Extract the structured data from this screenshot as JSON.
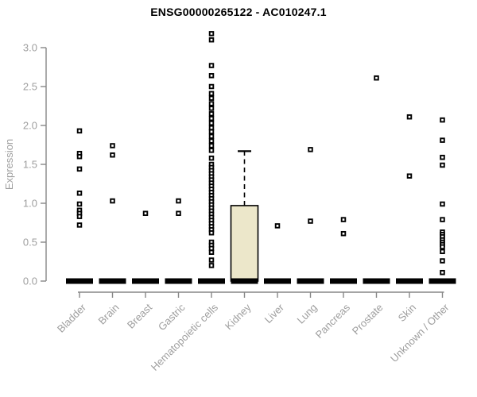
{
  "page": {
    "background": "#ffffff"
  },
  "chart_data": {
    "type": "boxplot",
    "title": "ENSG00000265122 - AC010247.1",
    "ylabel": "Expression",
    "xlabel": "",
    "ylim": [
      0,
      3.25
    ],
    "yticks": [
      "0.0",
      "0.5",
      "1.0",
      "1.5",
      "2.0",
      "2.5",
      "3.0"
    ],
    "grid": false,
    "legend": false,
    "categories": [
      "Bladder",
      "Brain",
      "Breast",
      "Gastric",
      "Hematopoietic cells",
      "Kidney",
      "Liver",
      "Lung",
      "Pancreas",
      "Prostate",
      "Skin",
      "Unknown / Other"
    ],
    "series": [
      {
        "name": "Bladder",
        "median": 0,
        "points": [
          1.93,
          1.64,
          1.6,
          1.44,
          1.13,
          0.99,
          0.91,
          0.87,
          0.83,
          0.72
        ]
      },
      {
        "name": "Brain",
        "median": 0,
        "points": [
          1.74,
          1.62,
          1.03
        ]
      },
      {
        "name": "Breast",
        "median": 0,
        "points": [
          0.87
        ]
      },
      {
        "name": "Gastric",
        "median": 0,
        "points": [
          1.03,
          0.87
        ]
      },
      {
        "name": "Hematopoietic cells",
        "median": 0,
        "points": [
          3.18,
          3.1,
          2.77,
          2.64,
          2.5,
          2.41,
          2.35,
          2.28,
          2.22,
          2.15,
          2.09,
          2.03,
          1.97,
          1.92,
          1.86,
          1.8,
          1.74,
          1.68,
          1.58,
          1.5,
          1.46,
          1.42,
          1.38,
          1.34,
          1.3,
          1.26,
          1.22,
          1.18,
          1.14,
          1.1,
          1.06,
          1.02,
          0.98,
          0.94,
          0.9,
          0.86,
          0.82,
          0.78,
          0.74,
          0.7,
          0.66,
          0.62,
          0.5,
          0.46,
          0.42,
          0.37,
          0.27,
          0.2
        ]
      },
      {
        "name": "Kidney",
        "median": 0,
        "box": {
          "q1": 0,
          "q3": 0.97,
          "whisker_low": 0,
          "whisker_high": 1.67
        },
        "points": []
      },
      {
        "name": "Liver",
        "median": 0,
        "points": [
          0.71
        ]
      },
      {
        "name": "Lung",
        "median": 0,
        "points": [
          1.69,
          0.77
        ]
      },
      {
        "name": "Pancreas",
        "median": 0,
        "points": [
          0.79,
          0.61
        ]
      },
      {
        "name": "Prostate",
        "median": 0,
        "points": [
          2.61
        ]
      },
      {
        "name": "Skin",
        "median": 0,
        "points": [
          2.11,
          1.35
        ]
      },
      {
        "name": "Unknown / Other",
        "median": 0,
        "points": [
          2.07,
          1.81,
          1.59,
          1.49,
          0.99,
          0.79,
          0.63,
          0.6,
          0.57,
          0.53,
          0.5,
          0.47,
          0.44,
          0.38,
          0.26,
          0.11
        ]
      }
    ],
    "colors": {
      "box_fill": "#ECE7CA",
      "box_border": "#000000",
      "point_stroke": "#000000",
      "point_fill": "#FFFFFF",
      "median": "#000000",
      "axis": "#878787",
      "tick_label": "#9E9E9E",
      "title": "#000000"
    }
  }
}
